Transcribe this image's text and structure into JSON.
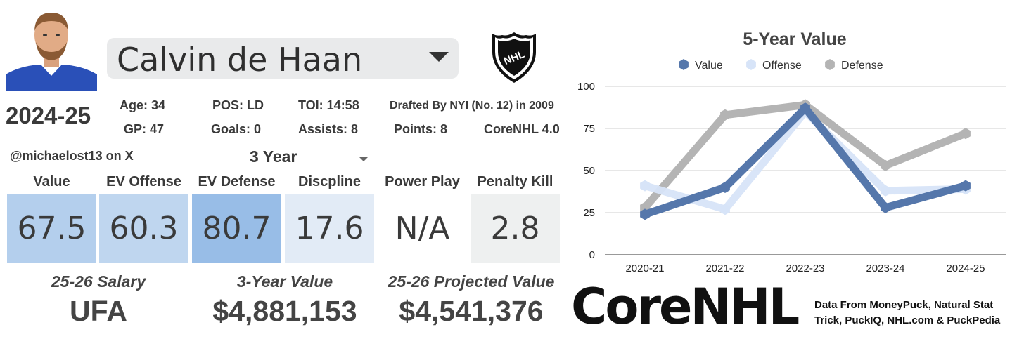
{
  "player": {
    "name": "Calvin de Haan",
    "season": "2024-25",
    "handle": "@michaelost13 on X",
    "period": "3 Year"
  },
  "stats": {
    "age": "Age: 34",
    "pos": "POS: LD",
    "toi": "TOI: 14:58",
    "drafted": "Drafted By NYI (No. 12) in 2009",
    "gp": "GP: 47",
    "goals": "Goals: 0",
    "assists": "Assists: 8",
    "points": "Points: 8",
    "version": "CoreNHL 4.0"
  },
  "metrics": [
    {
      "label": "Value",
      "value": "67.5",
      "color": "#b4cfed"
    },
    {
      "label": "EV Offense",
      "value": "60.3",
      "color": "#bfd6ef"
    },
    {
      "label": "EV Defense",
      "value": "80.7",
      "color": "#98bde7"
    },
    {
      "label": "Discpline",
      "value": "17.6",
      "color": "#e2ebf6"
    },
    {
      "label": "Power Play",
      "value": "N/A",
      "color": "#ffffff"
    },
    {
      "label": "Penalty Kill",
      "value": "2.8",
      "color": "#eef0f0"
    }
  ],
  "salary": {
    "salary_label": "25-26 Salary",
    "salary_value": "UFA",
    "value_label": "3-Year Value",
    "value_value": "$4,881,153",
    "proj_label": "25-26 Projected Value",
    "proj_value": "$4,541,376"
  },
  "logo": {
    "league": "NHL"
  },
  "brand": {
    "name": "CoreNHL",
    "source_line1": "Data From MoneyPuck, Natural Stat",
    "source_line2": "Trick, PuckIQ, NHL.com & PuckPedia"
  },
  "chart_data": {
    "type": "line",
    "title": "5-Year Value",
    "categories": [
      "2020-21",
      "2021-22",
      "2022-23",
      "2023-24",
      "2024-25"
    ],
    "ylim": [
      0,
      100
    ],
    "yticks": [
      0,
      25,
      50,
      75,
      100
    ],
    "legend_position": "top",
    "series": [
      {
        "name": "Value",
        "color": "#5577ab",
        "values": [
          24,
          40,
          87,
          28,
          41
        ]
      },
      {
        "name": "Offense",
        "color": "#d7e4f8",
        "values": [
          41,
          27,
          85,
          38,
          39
        ]
      },
      {
        "name": "Defense",
        "color": "#b4b4b4",
        "values": [
          28,
          83,
          89,
          53,
          72
        ]
      }
    ]
  }
}
